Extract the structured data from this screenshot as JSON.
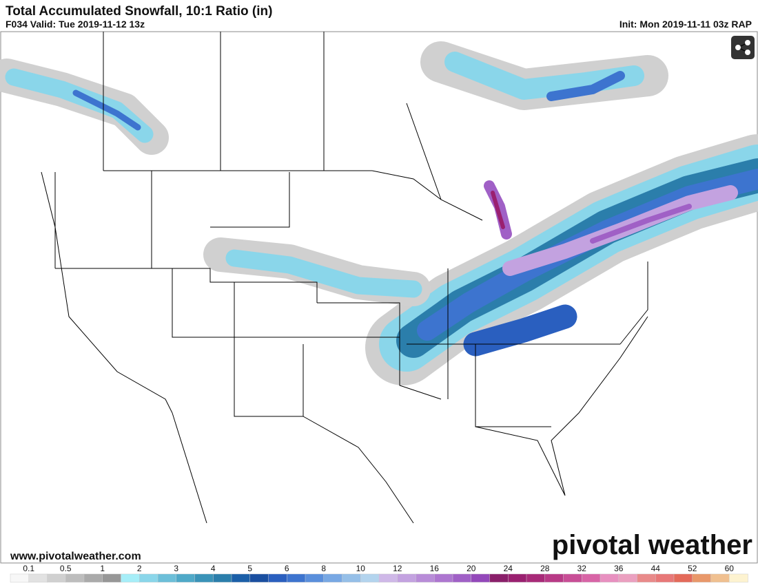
{
  "header": {
    "title": "Total Accumulated Snowfall, 10:1 Ratio (in)",
    "valid": "F034 Valid: Tue 2019-11-12 13z",
    "init": "Init: Mon 2019-11-11 03z RAP"
  },
  "map": {
    "watermark": "www.pivotalweather.com",
    "logo": "pivotal weather"
  },
  "legend": {
    "labels": [
      0.1,
      0.5,
      1,
      2,
      3,
      4,
      5,
      6,
      8,
      10,
      12,
      16,
      20,
      24,
      28,
      32,
      36,
      44,
      52,
      60
    ],
    "colors": [
      "#f7f7f7",
      "#e2e2e2",
      "#d0d0d0",
      "#bdbdbd",
      "#aaaaaa",
      "#979797",
      "#a6eef8",
      "#8ad6ea",
      "#6cbfd9",
      "#4fa9c8",
      "#3a93b8",
      "#2b7eab",
      "#1b5fa8",
      "#1a4fa0",
      "#2a5fbf",
      "#3d74cf",
      "#5a8fdc",
      "#78a8e4",
      "#95bfe8",
      "#b3d4ee",
      "#cfb8e8",
      "#c3a2e0",
      "#b88cd8",
      "#ad76d0",
      "#a060c6",
      "#9348ba",
      "#8a1f6a",
      "#9a2070",
      "#a82a78",
      "#b83a86",
      "#c84e96",
      "#d864a6",
      "#e890c0",
      "#eba0c0",
      "#e98a8a",
      "#e87878",
      "#e46a5a",
      "#e9986a",
      "#f0c090",
      "#fdf3d0"
    ]
  }
}
